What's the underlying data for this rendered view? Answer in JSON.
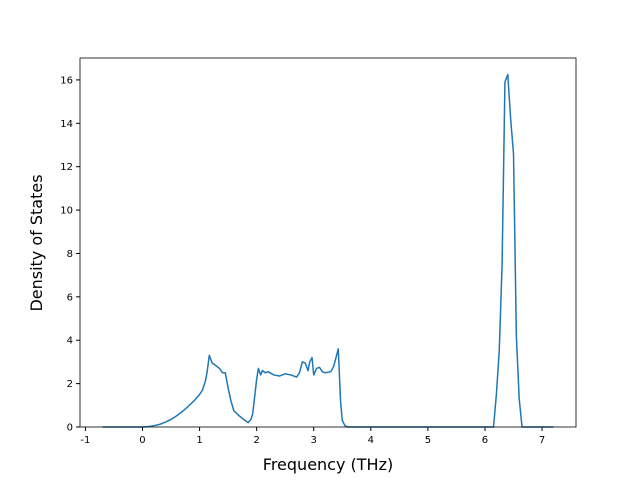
{
  "chart_data": {
    "type": "line",
    "xlabel": "Frequency (THz)",
    "ylabel": "Density of States",
    "xlim": [
      -1.095,
      7.595
    ],
    "ylim": [
      0,
      17.01
    ],
    "xticks": [
      -1,
      0,
      1,
      2,
      3,
      4,
      5,
      6,
      7
    ],
    "yticks": [
      0,
      2,
      4,
      6,
      8,
      10,
      12,
      14,
      16
    ],
    "grid": false,
    "series": [
      {
        "color": "#1f77b4",
        "x": [
          -0.7,
          0,
          0.1,
          0.2,
          0.3,
          0.4,
          0.5,
          0.6,
          0.7,
          0.8,
          0.9,
          1.0,
          1.05,
          1.1,
          1.13,
          1.17,
          1.22,
          1.3,
          1.35,
          1.4,
          1.45,
          1.5,
          1.55,
          1.6,
          1.7,
          1.8,
          1.85,
          1.9,
          1.93,
          1.97,
          2.0,
          2.03,
          2.07,
          2.1,
          2.15,
          2.2,
          2.3,
          2.4,
          2.5,
          2.6,
          2.7,
          2.75,
          2.8,
          2.85,
          2.9,
          2.93,
          2.97,
          3.0,
          3.05,
          3.1,
          3.15,
          3.2,
          3.3,
          3.35,
          3.4,
          3.43,
          3.47,
          3.5,
          3.55,
          3.6,
          6.15,
          6.2,
          6.25,
          6.3,
          6.35,
          6.4,
          6.45,
          6.5,
          6.55,
          6.6,
          6.65,
          7.2
        ],
        "values": [
          0,
          0,
          0.02,
          0.06,
          0.12,
          0.22,
          0.35,
          0.52,
          0.72,
          0.95,
          1.2,
          1.5,
          1.7,
          2.1,
          2.5,
          3.3,
          2.95,
          2.8,
          2.7,
          2.5,
          2.5,
          1.8,
          1.2,
          0.75,
          0.5,
          0.3,
          0.2,
          0.35,
          0.6,
          1.5,
          2.2,
          2.7,
          2.4,
          2.6,
          2.5,
          2.55,
          2.4,
          2.35,
          2.45,
          2.4,
          2.3,
          2.5,
          3.0,
          2.95,
          2.6,
          3.0,
          3.2,
          2.4,
          2.7,
          2.75,
          2.55,
          2.5,
          2.55,
          2.8,
          3.3,
          3.6,
          1.2,
          0.3,
          0.05,
          0,
          0,
          1.5,
          3.5,
          7.5,
          15.9,
          16.25,
          14.2,
          12.6,
          4.2,
          1.3,
          0,
          0
        ]
      }
    ]
  }
}
